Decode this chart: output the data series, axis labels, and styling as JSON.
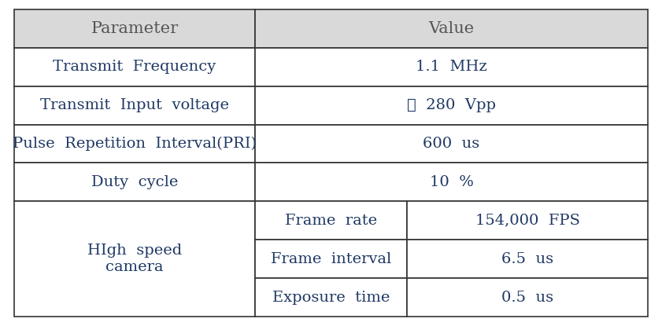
{
  "header_bg": "#d9d9d9",
  "cell_bg": "#ffffff",
  "border_color": "#333333",
  "text_color": "#1f3864",
  "header_text_color": "#555555",
  "font_size": 14,
  "col1_label": "Parameter",
  "col2_label": "Value",
  "col_split1": 0.38,
  "col_split2": 0.62,
  "simple_rows": [
    {
      "param": "Transmit  Frequency",
      "value": "1.1  MHz"
    },
    {
      "param": "Transmit  Input  voltage",
      "value": "약  280  Vpp"
    },
    {
      "param": "Pulse  Repetition  Interval(PRI)",
      "value": "600  us"
    },
    {
      "param": "Duty  cycle",
      "value": "10  %"
    }
  ],
  "group_label": "HIgh  speed\ncamera",
  "sub_rows": [
    {
      "param": "Frame  rate",
      "value": "154,000  FPS"
    },
    {
      "param": "Frame  interval",
      "value": "6.5  us"
    },
    {
      "param": "Exposure  time",
      "value": "0.5  us"
    }
  ]
}
